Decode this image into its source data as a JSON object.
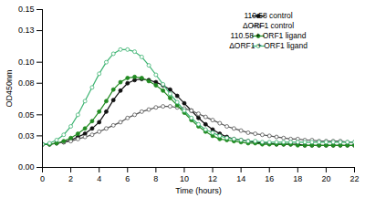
{
  "chart_data": {
    "type": "line",
    "xlabel": "Time (hours)",
    "ylabel": "OD450nm",
    "x": [
      0,
      0.5,
      1,
      1.5,
      2,
      2.5,
      3,
      3.5,
      4,
      4.5,
      5,
      5.5,
      6,
      6.5,
      7,
      7.5,
      8,
      8.5,
      9,
      9.5,
      10,
      10.5,
      11,
      11.5,
      12,
      12.5,
      13,
      13.5,
      14,
      14.5,
      15,
      15.5,
      16,
      16.5,
      17,
      17.5,
      18,
      18.5,
      19,
      19.5,
      20,
      20.5,
      21,
      21.5,
      22
    ],
    "xlim": [
      0,
      22
    ],
    "xticks": [
      0,
      2,
      4,
      6,
      8,
      10,
      12,
      14,
      16,
      18,
      20,
      22
    ],
    "ylim": [
      0,
      0.15
    ],
    "yticks": [
      {
        "value": 0,
        "label": "0.00"
      },
      0.03,
      0.05,
      0.08,
      {
        "value": 0.1,
        "label": "0.10"
      },
      0.13,
      0.15
    ],
    "grid": false,
    "legend": "upper right",
    "series": [
      {
        "name": "110.58 control",
        "color": "#111111",
        "marker": "circle",
        "values": [
          0.022,
          0.022,
          0.023,
          0.024,
          0.026,
          0.029,
          0.032,
          0.037,
          0.043,
          0.053,
          0.064,
          0.073,
          0.08,
          0.083,
          0.084,
          0.083,
          0.081,
          0.078,
          0.074,
          0.068,
          0.061,
          0.054,
          0.047,
          0.041,
          0.036,
          0.032,
          0.029,
          0.027,
          0.026,
          0.025,
          0.024,
          0.023,
          0.023,
          0.022,
          0.022,
          0.022,
          0.022,
          0.021,
          0.021,
          0.021,
          0.021,
          0.021,
          0.021,
          0.021,
          0.021
        ]
      },
      {
        "name": "ΔORF1 control",
        "color": "#555555",
        "marker": "ring",
        "values": [
          0.022,
          0.022,
          0.023,
          0.024,
          0.025,
          0.027,
          0.029,
          0.031,
          0.034,
          0.037,
          0.04,
          0.043,
          0.047,
          0.05,
          0.053,
          0.055,
          0.057,
          0.058,
          0.058,
          0.057,
          0.056,
          0.054,
          0.051,
          0.048,
          0.045,
          0.042,
          0.039,
          0.037,
          0.035,
          0.033,
          0.032,
          0.031,
          0.03,
          0.029,
          0.028,
          0.027,
          0.027,
          0.026,
          0.026,
          0.025,
          0.025,
          0.025,
          0.025,
          0.024,
          0.024
        ]
      },
      {
        "name": "110.58 + ORF1 ligand",
        "color": "#228B22",
        "marker": "circle",
        "values": [
          0.022,
          0.022,
          0.023,
          0.025,
          0.028,
          0.032,
          0.037,
          0.044,
          0.053,
          0.063,
          0.074,
          0.081,
          0.085,
          0.086,
          0.085,
          0.082,
          0.078,
          0.073,
          0.066,
          0.059,
          0.052,
          0.045,
          0.039,
          0.034,
          0.03,
          0.027,
          0.026,
          0.025,
          0.024,
          0.023,
          0.023,
          0.022,
          0.022,
          0.022,
          0.022,
          0.022,
          0.021,
          0.021,
          0.021,
          0.021,
          0.021,
          0.021,
          0.021,
          0.021,
          0.021
        ]
      },
      {
        "name": "ΔORF1 + ORF1 ligand",
        "color": "#3CB371",
        "marker": "ring",
        "values": [
          0.022,
          0.023,
          0.026,
          0.031,
          0.039,
          0.05,
          0.063,
          0.076,
          0.089,
          0.1,
          0.108,
          0.112,
          0.112,
          0.11,
          0.105,
          0.097,
          0.088,
          0.079,
          0.07,
          0.062,
          0.054,
          0.047,
          0.041,
          0.036,
          0.033,
          0.03,
          0.028,
          0.027,
          0.026,
          0.025,
          0.025,
          0.024,
          0.024,
          0.024,
          0.024,
          0.024,
          0.024,
          0.024,
          0.024,
          0.024,
          0.024,
          0.024,
          0.024,
          0.024,
          0.024
        ]
      }
    ]
  }
}
